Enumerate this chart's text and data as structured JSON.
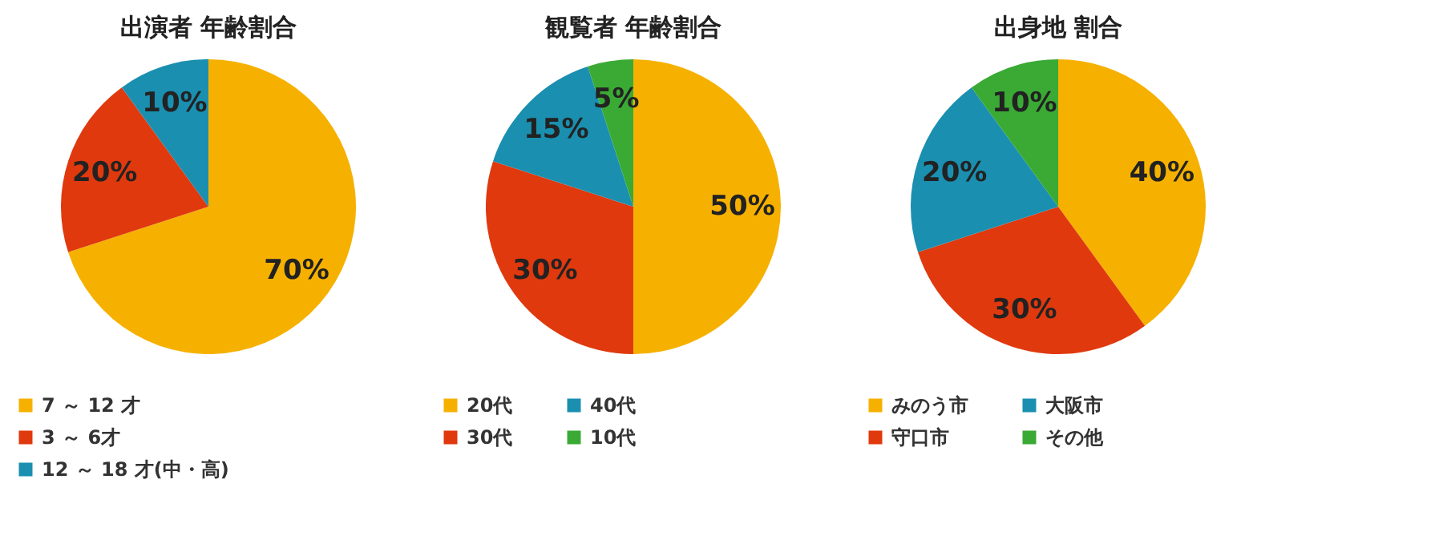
{
  "chart_data": [
    {
      "type": "pie",
      "title": "出演者 年齢割合",
      "categories": [
        "7 ～ 12 才",
        "3 ～ 6才",
        "12 ～ 18 才(中・高)"
      ],
      "values": [
        70,
        20,
        10
      ],
      "colors": [
        "#f6b100",
        "#e0390e",
        "#1a8fb0"
      ],
      "value_labels": [
        "70%",
        "20%",
        "10%"
      ],
      "legend": "bottom left"
    },
    {
      "type": "pie",
      "title": "観覧者 年齢割合",
      "categories": [
        "20代",
        "30代",
        "40代",
        "10代"
      ],
      "values": [
        50,
        30,
        15,
        5
      ],
      "colors": [
        "#f6b100",
        "#e0390e",
        "#1a8fb0",
        "#3aaa35"
      ],
      "value_labels": [
        "50%",
        "30%",
        "15%",
        "5%"
      ],
      "legend": "bottom left"
    },
    {
      "type": "pie",
      "title": "出身地 割合",
      "categories": [
        "みのう市",
        "守口市",
        "大阪市",
        "その他"
      ],
      "values": [
        40,
        30,
        20,
        10
      ],
      "colors": [
        "#f6b100",
        "#e0390e",
        "#1a8fb0",
        "#3aaa35"
      ],
      "value_labels": [
        "40%",
        "30%",
        "20%",
        "10%"
      ],
      "legend": "bottom left"
    }
  ]
}
